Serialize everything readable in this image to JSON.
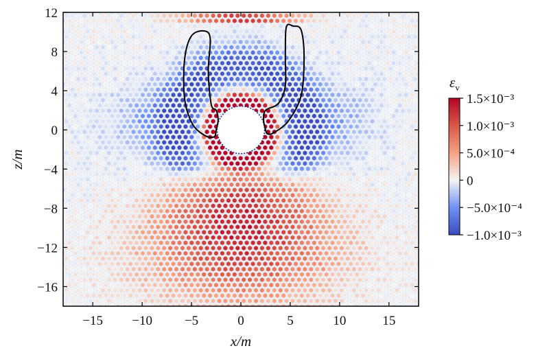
{
  "chart_data": {
    "type": "heatmap",
    "xlabel": "x/m",
    "ylabel": "z/m",
    "xlim": [
      -18,
      18
    ],
    "ylim": [
      -18,
      12
    ],
    "xticks": [
      -15,
      -10,
      -5,
      0,
      5,
      10,
      15
    ],
    "xtick_labels": [
      "−15",
      "−10",
      "−5",
      "0",
      "5",
      "10",
      "15"
    ],
    "yticks": [
      12,
      8,
      4,
      0,
      -4,
      -8,
      -12,
      -16
    ],
    "ytick_labels": [
      "12",
      "8",
      "4",
      "0",
      "−4",
      "−8",
      "−12",
      "−16"
    ],
    "colorbar": {
      "label": "ε",
      "label_subscript": "v",
      "min": -0.001,
      "max": 0.0015,
      "ticks": [
        0.0015,
        0.001,
        0.0005,
        0,
        -0.0005,
        -0.001
      ],
      "tick_labels": [
        "1.5×10⁻³",
        "1.0×10⁻³",
        "5.0×10⁻⁴",
        "0",
        "−5.0×10⁻⁴",
        "−1.0×10⁻³"
      ],
      "colors": [
        "#3a4cc0",
        "#f7f7f7",
        "#b40426"
      ]
    },
    "tunnel": {
      "center": [
        0,
        0
      ],
      "radius": 2.4
    },
    "contour_left": [
      [
        -2.7,
        -0.7
      ],
      [
        -3.6,
        -0.6
      ],
      [
        -4.9,
        0.6
      ],
      [
        -5.7,
        3.2
      ],
      [
        -5.7,
        7.2
      ],
      [
        -5.0,
        9.6
      ],
      [
        -3.7,
        10.1
      ],
      [
        -3.1,
        9.3
      ],
      [
        -3.3,
        6.0
      ],
      [
        -3.0,
        2.6
      ],
      [
        -2.5,
        2.0
      ],
      [
        -2.3,
        1.0
      ],
      [
        -2.5,
        0.0
      ],
      [
        -2.7,
        -0.7
      ]
    ],
    "contour_right": [
      [
        2.7,
        -0.4
      ],
      [
        3.3,
        -0.3
      ],
      [
        4.8,
        0.9
      ],
      [
        6.1,
        3.5
      ],
      [
        6.4,
        7.5
      ],
      [
        6.1,
        10.2
      ],
      [
        5.3,
        10.6
      ],
      [
        4.6,
        10.5
      ],
      [
        4.5,
        7.5
      ],
      [
        4.5,
        4.5
      ],
      [
        3.8,
        2.7
      ],
      [
        2.5,
        2.0
      ],
      [
        2.3,
        1.0
      ],
      [
        2.5,
        0.0
      ],
      [
        2.7,
        -0.4
      ]
    ]
  }
}
